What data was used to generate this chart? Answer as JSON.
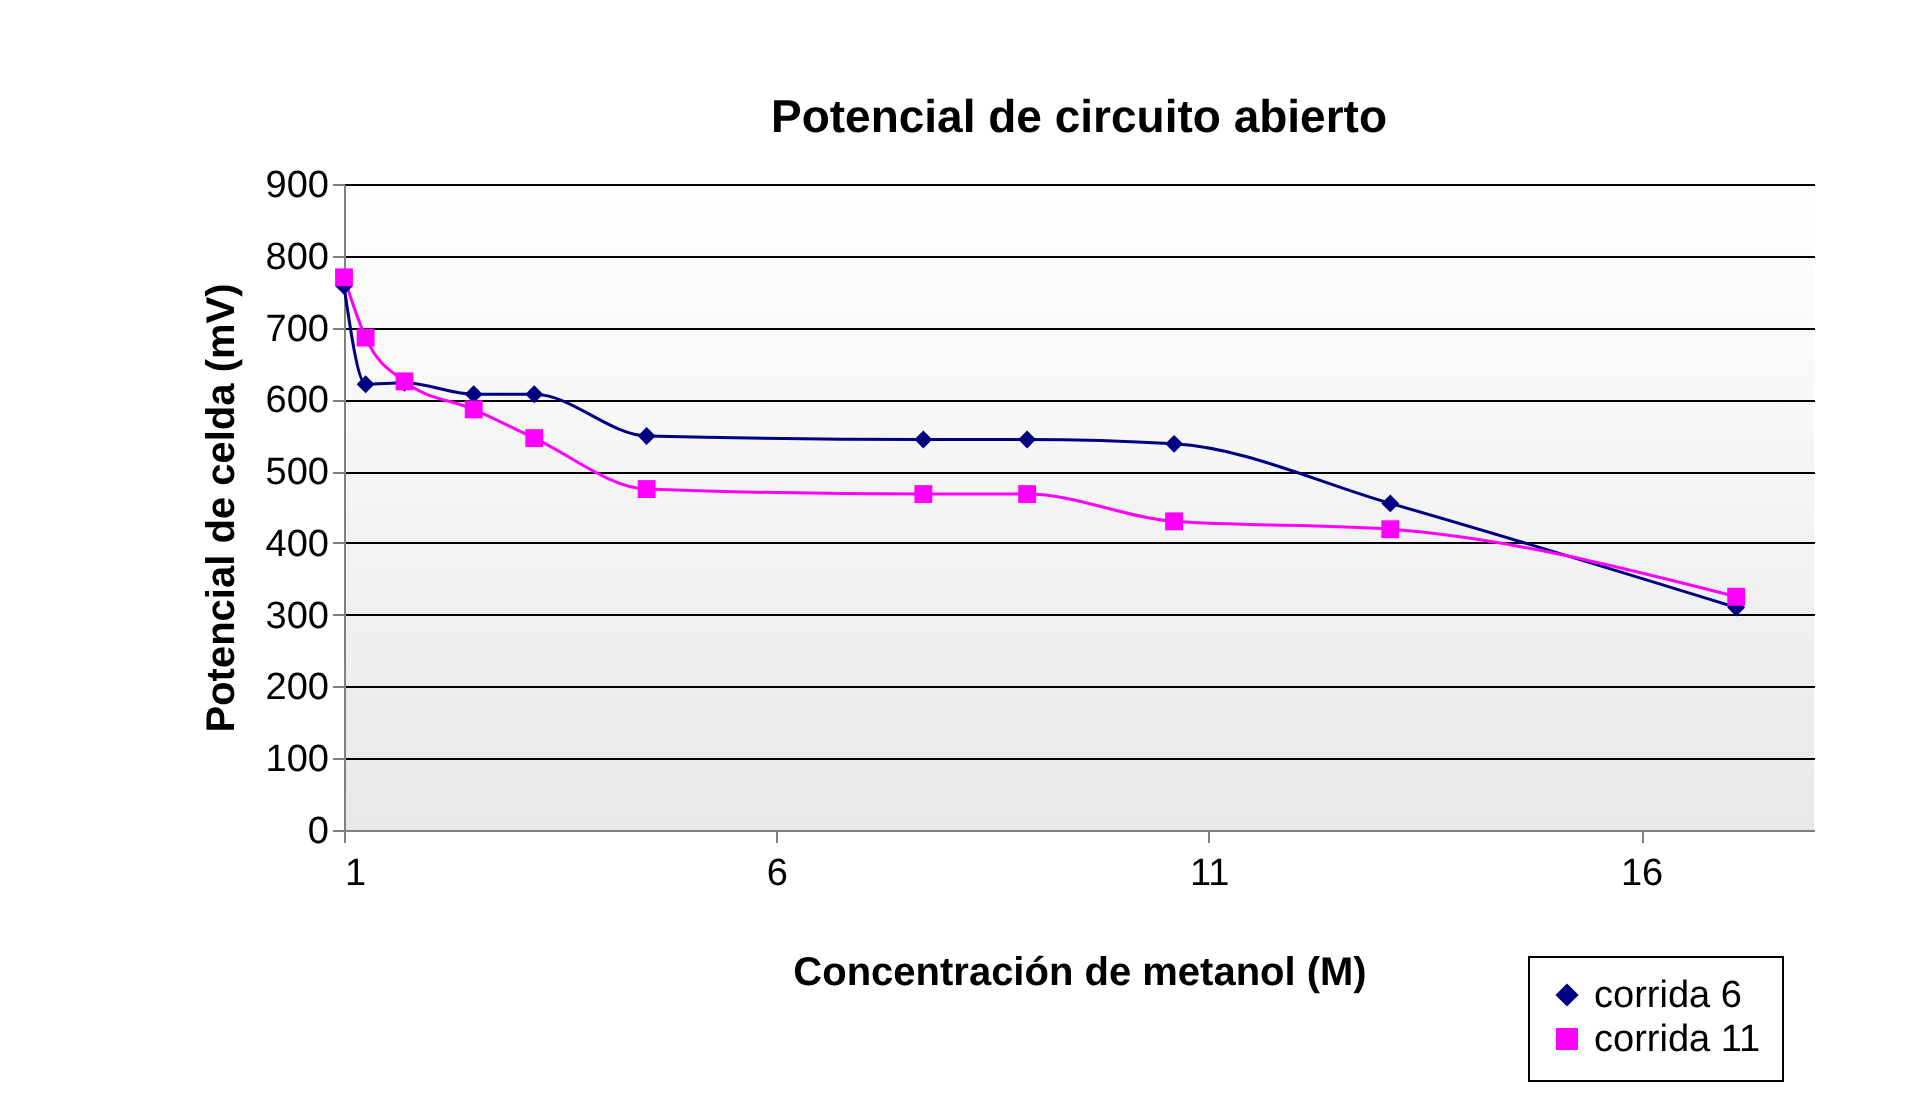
{
  "chart_data": {
    "type": "line",
    "title": "Potencial de circuito abierto",
    "xlabel": "Concentración de metanol (M)",
    "ylabel": "Potencial de celda (mV)",
    "xlim": [
      1,
      18
    ],
    "xticks": [
      1,
      6,
      11,
      16
    ],
    "ylim": [
      0,
      900
    ],
    "yticks": [
      0,
      100,
      200,
      300,
      400,
      500,
      600,
      700,
      800,
      900
    ],
    "grid": "y",
    "legend": "bottom right",
    "line_style": "solid",
    "series": [
      {
        "name": "corrida 6",
        "color": "#000080",
        "marker": "diamond",
        "x": [
          1,
          1.25,
          1.7,
          2.5,
          3.2,
          4.5,
          7.7,
          8.9,
          10.6,
          13.1,
          17.1
        ],
        "values": [
          758,
          621,
          623,
          607,
          607,
          549,
          544,
          544,
          538,
          455,
          310
        ]
      },
      {
        "name": "corrida 11",
        "color": "#ff00ff",
        "marker": "square",
        "x": [
          1,
          1.25,
          1.7,
          2.5,
          3.2,
          4.5,
          7.7,
          8.9,
          10.6,
          13.1,
          17.1
        ],
        "values": [
          770,
          686,
          625,
          586,
          546,
          475,
          468,
          468,
          430,
          419,
          325
        ]
      }
    ]
  }
}
